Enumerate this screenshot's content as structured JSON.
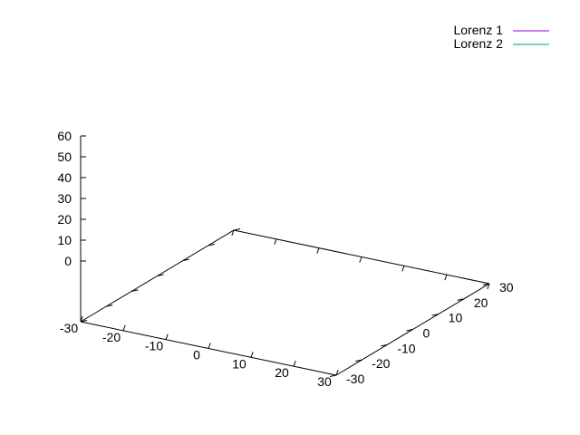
{
  "chart_data": {
    "type": "line",
    "projection": "3d",
    "title": "",
    "xlabel": "",
    "ylabel": "",
    "zlabel": "",
    "xlim": [
      -30,
      30
    ],
    "ylim": [
      -30,
      30
    ],
    "zlim": [
      0,
      60
    ],
    "x_ticks": [
      -30,
      -20,
      -10,
      0,
      10,
      20,
      30
    ],
    "y_ticks": [
      -30,
      -20,
      -10,
      0,
      10,
      20,
      30
    ],
    "z_ticks": [
      0,
      10,
      20,
      30,
      40,
      50,
      60
    ],
    "grid": false,
    "legend_position": "top-right",
    "series": [
      {
        "name": "Lorenz 1",
        "color": "#9400d3",
        "points": []
      },
      {
        "name": "Lorenz 2",
        "color": "#009e73",
        "points": []
      }
    ]
  }
}
